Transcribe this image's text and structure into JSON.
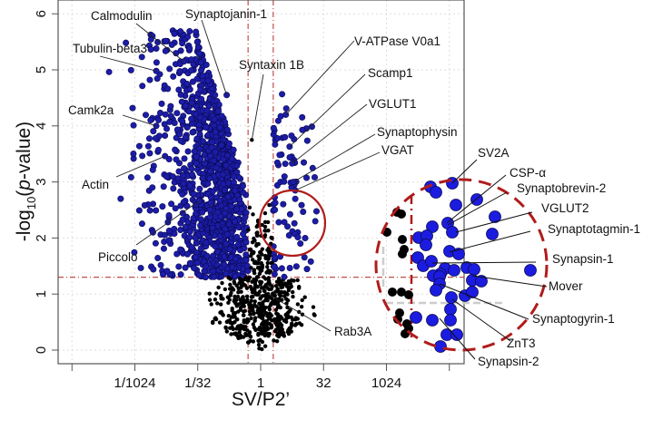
{
  "chart_data": {
    "type": "scatter",
    "title": "",
    "xlabel": "SV/P2’",
    "ylabel": {
      "prefix": "-log",
      "sub": "10",
      "open": "(",
      "italic": "p",
      "rest": "-value)"
    },
    "x_scale": "log2",
    "xlim": [
      -16,
      20
    ],
    "ylim": [
      -0.2,
      6.2
    ],
    "x_ticks": [
      {
        "value": -15,
        "label": ""
      },
      {
        "value": -10,
        "label": "1/1024"
      },
      {
        "value": -5,
        "label": "1/32"
      },
      {
        "value": 0,
        "label": "1"
      },
      {
        "value": 5,
        "label": "32"
      },
      {
        "value": 10,
        "label": "1024"
      },
      {
        "value": 15,
        "label": ""
      }
    ],
    "y_ticks": [
      0,
      1,
      2,
      3,
      4,
      5,
      6
    ],
    "grid": true,
    "thresholds": {
      "log2_fold_change": [
        -1,
        1
      ],
      "neg_log10_p": 1.3
    },
    "colors": {
      "significant": "#1c1ca8",
      "not_significant": "#000000",
      "threshold": "#c0504d",
      "highlight": "#b01c1c"
    },
    "labeled_points": [
      {
        "name": "Calmodulin",
        "x": -6.1,
        "y": 5.15
      },
      {
        "name": "Synaptojanin-1",
        "x": -2.7,
        "y": 4.55
      },
      {
        "name": "Tubulin-beta3",
        "x": -8.3,
        "y": 4.98
      },
      {
        "name": "Syntaxin 1B",
        "x": -0.7,
        "y": 3.75
      },
      {
        "name": "Camk2a",
        "x": -8.3,
        "y": 4.0
      },
      {
        "name": "Actin",
        "x": -7.6,
        "y": 3.46
      },
      {
        "name": "Piccolo",
        "x": -4.9,
        "y": 2.66
      },
      {
        "name": "V-ATPase V0a1",
        "x": 2.0,
        "y": 4.2
      },
      {
        "name": "Scamp1",
        "x": 2.3,
        "y": 3.63
      },
      {
        "name": "VGLUT1",
        "x": 2.5,
        "y": 3.33
      },
      {
        "name": "Synaptophysin",
        "x": 2.6,
        "y": 3.0
      },
      {
        "name": "VGAT",
        "x": 2.75,
        "y": 2.85
      },
      {
        "name": "Rab3A",
        "x": 0.6,
        "y": 1.0
      }
    ],
    "inset_labels": [
      "SV2A",
      "CSP-α",
      "Synaptobrevin-2",
      "VGLUT2",
      "Synaptotagmin-1",
      "Synapsin-1",
      "Mover",
      "Synaptogyrin-1",
      "ZnT3",
      "Synapsin-2"
    ]
  }
}
